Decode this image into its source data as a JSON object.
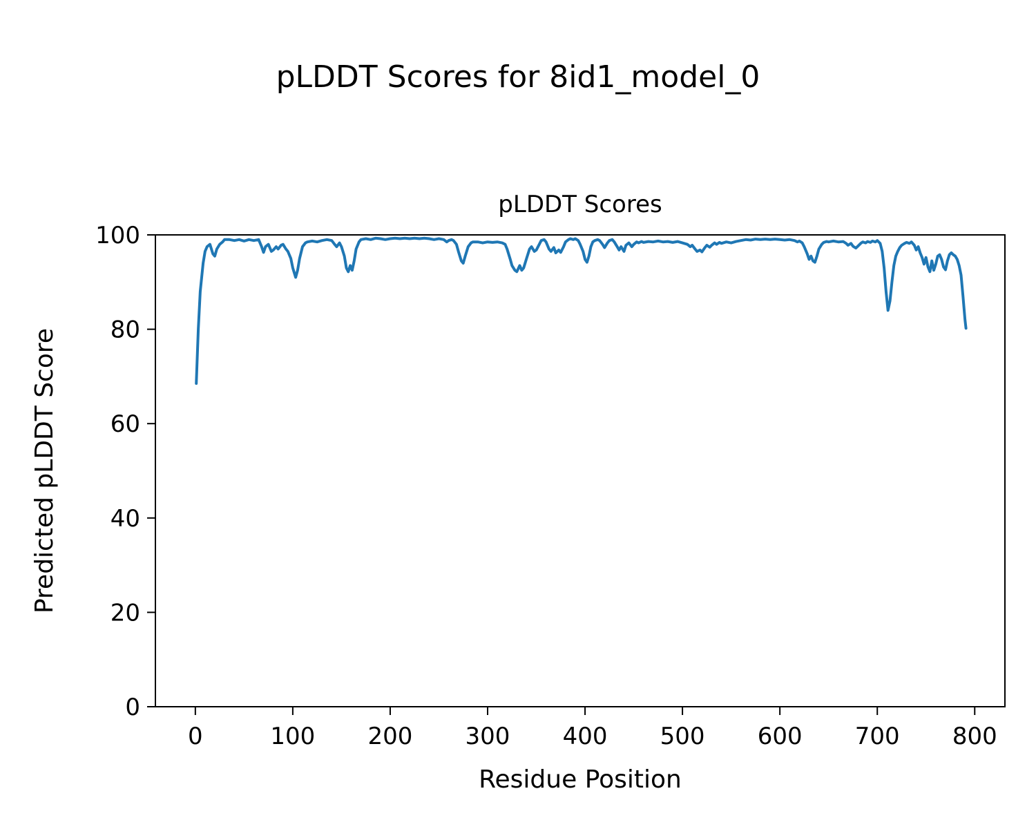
{
  "figure": {
    "suptitle": "pLDDT Scores for 8id1_model_0"
  },
  "chart_data": {
    "type": "line",
    "title": "pLDDT Scores",
    "xlabel": "Residue Position",
    "ylabel": "Predicted pLDDT Score",
    "series_name": "pLDDT",
    "xlim": [
      -41,
      831
    ],
    "ylim": [
      0,
      100
    ],
    "xticks": [
      0,
      100,
      200,
      300,
      400,
      500,
      600,
      700,
      800
    ],
    "yticks": [
      0,
      20,
      40,
      60,
      80,
      100
    ],
    "grid": false,
    "line_color": "#1f77b4",
    "line_width": 4,
    "points": [
      [
        1,
        68.5
      ],
      [
        3,
        80
      ],
      [
        5,
        88
      ],
      [
        8,
        94
      ],
      [
        10,
        96.5
      ],
      [
        12,
        97.5
      ],
      [
        15,
        98
      ],
      [
        18,
        96
      ],
      [
        20,
        95.5
      ],
      [
        22,
        97
      ],
      [
        25,
        98
      ],
      [
        28,
        98.5
      ],
      [
        30,
        99
      ],
      [
        35,
        99
      ],
      [
        40,
        98.8
      ],
      [
        45,
        99
      ],
      [
        50,
        98.7
      ],
      [
        55,
        99
      ],
      [
        60,
        98.8
      ],
      [
        65,
        99
      ],
      [
        68,
        97.5
      ],
      [
        70,
        96.3
      ],
      [
        72,
        97.5
      ],
      [
        75,
        98
      ],
      [
        78,
        96.5
      ],
      [
        80,
        96.8
      ],
      [
        83,
        97.5
      ],
      [
        85,
        97
      ],
      [
        88,
        97.8
      ],
      [
        90,
        98
      ],
      [
        93,
        97
      ],
      [
        95,
        96.5
      ],
      [
        98,
        95
      ],
      [
        100,
        93
      ],
      [
        103,
        91
      ],
      [
        105,
        92.5
      ],
      [
        107,
        95
      ],
      [
        110,
        97.5
      ],
      [
        113,
        98.3
      ],
      [
        115,
        98.5
      ],
      [
        120,
        98.7
      ],
      [
        125,
        98.5
      ],
      [
        130,
        98.8
      ],
      [
        135,
        99
      ],
      [
        140,
        98.8
      ],
      [
        143,
        98
      ],
      [
        145,
        97.5
      ],
      [
        148,
        98.3
      ],
      [
        150,
        97.5
      ],
      [
        153,
        95.5
      ],
      [
        155,
        93
      ],
      [
        157,
        92.2
      ],
      [
        159,
        93.5
      ],
      [
        161,
        92.5
      ],
      [
        163,
        94.5
      ],
      [
        165,
        97
      ],
      [
        168,
        98.5
      ],
      [
        170,
        99
      ],
      [
        175,
        99.2
      ],
      [
        180,
        99
      ],
      [
        185,
        99.3
      ],
      [
        190,
        99.2
      ],
      [
        195,
        99
      ],
      [
        200,
        99.2
      ],
      [
        205,
        99.3
      ],
      [
        210,
        99.2
      ],
      [
        215,
        99.3
      ],
      [
        220,
        99.2
      ],
      [
        225,
        99.3
      ],
      [
        230,
        99.2
      ],
      [
        235,
        99.3
      ],
      [
        240,
        99.2
      ],
      [
        245,
        99
      ],
      [
        250,
        99.2
      ],
      [
        255,
        99
      ],
      [
        258,
        98.5
      ],
      [
        260,
        98.8
      ],
      [
        263,
        99
      ],
      [
        265,
        98.8
      ],
      [
        268,
        98
      ],
      [
        270,
        96.5
      ],
      [
        273,
        94.5
      ],
      [
        275,
        94
      ],
      [
        277,
        95.5
      ],
      [
        280,
        97.5
      ],
      [
        283,
        98.3
      ],
      [
        285,
        98.5
      ],
      [
        290,
        98.5
      ],
      [
        295,
        98.3
      ],
      [
        300,
        98.5
      ],
      [
        305,
        98.4
      ],
      [
        310,
        98.5
      ],
      [
        315,
        98.3
      ],
      [
        318,
        98
      ],
      [
        320,
        97
      ],
      [
        323,
        95
      ],
      [
        325,
        93.5
      ],
      [
        328,
        92.5
      ],
      [
        330,
        92.2
      ],
      [
        333,
        93.5
      ],
      [
        335,
        92.5
      ],
      [
        337,
        93
      ],
      [
        340,
        95
      ],
      [
        343,
        97
      ],
      [
        345,
        97.5
      ],
      [
        348,
        96.5
      ],
      [
        350,
        96.8
      ],
      [
        353,
        98
      ],
      [
        355,
        98.8
      ],
      [
        358,
        99
      ],
      [
        360,
        98.5
      ],
      [
        363,
        97
      ],
      [
        365,
        96.5
      ],
      [
        368,
        97.3
      ],
      [
        370,
        96.2
      ],
      [
        373,
        96.8
      ],
      [
        375,
        96.3
      ],
      [
        378,
        97.5
      ],
      [
        380,
        98.5
      ],
      [
        383,
        99
      ],
      [
        385,
        99.2
      ],
      [
        388,
        99
      ],
      [
        390,
        99.2
      ],
      [
        393,
        98.8
      ],
      [
        395,
        98
      ],
      [
        398,
        96.5
      ],
      [
        400,
        94.8
      ],
      [
        402,
        94.2
      ],
      [
        404,
        95.5
      ],
      [
        406,
        97.5
      ],
      [
        408,
        98.5
      ],
      [
        410,
        98.8
      ],
      [
        413,
        99
      ],
      [
        415,
        98.8
      ],
      [
        418,
        98
      ],
      [
        420,
        97.3
      ],
      [
        423,
        98.3
      ],
      [
        425,
        98.8
      ],
      [
        428,
        99
      ],
      [
        430,
        98.5
      ],
      [
        433,
        97.5
      ],
      [
        435,
        96.8
      ],
      [
        437,
        97.5
      ],
      [
        440,
        96.5
      ],
      [
        442,
        97.8
      ],
      [
        445,
        98.3
      ],
      [
        448,
        97.5
      ],
      [
        450,
        98
      ],
      [
        453,
        98.5
      ],
      [
        455,
        98.3
      ],
      [
        458,
        98.6
      ],
      [
        460,
        98.4
      ],
      [
        465,
        98.6
      ],
      [
        470,
        98.5
      ],
      [
        475,
        98.7
      ],
      [
        480,
        98.5
      ],
      [
        485,
        98.6
      ],
      [
        490,
        98.4
      ],
      [
        495,
        98.6
      ],
      [
        500,
        98.3
      ],
      [
        505,
        98
      ],
      [
        508,
        97.5
      ],
      [
        510,
        97.8
      ],
      [
        513,
        97
      ],
      [
        515,
        96.5
      ],
      [
        518,
        96.8
      ],
      [
        520,
        96.4
      ],
      [
        523,
        97.3
      ],
      [
        525,
        97.8
      ],
      [
        528,
        97.4
      ],
      [
        530,
        97.8
      ],
      [
        533,
        98.3
      ],
      [
        535,
        98
      ],
      [
        538,
        98.4
      ],
      [
        540,
        98.2
      ],
      [
        545,
        98.5
      ],
      [
        550,
        98.3
      ],
      [
        555,
        98.6
      ],
      [
        560,
        98.8
      ],
      [
        565,
        99
      ],
      [
        570,
        98.9
      ],
      [
        575,
        99.1
      ],
      [
        580,
        99
      ],
      [
        585,
        99.1
      ],
      [
        590,
        99
      ],
      [
        595,
        99.1
      ],
      [
        600,
        99
      ],
      [
        605,
        98.9
      ],
      [
        610,
        99
      ],
      [
        615,
        98.8
      ],
      [
        618,
        98.5
      ],
      [
        620,
        98.7
      ],
      [
        623,
        98.3
      ],
      [
        625,
        97.5
      ],
      [
        628,
        96
      ],
      [
        630,
        94.8
      ],
      [
        632,
        95.5
      ],
      [
        634,
        94.5
      ],
      [
        636,
        94.2
      ],
      [
        638,
        95.5
      ],
      [
        640,
        97
      ],
      [
        643,
        98
      ],
      [
        645,
        98.4
      ],
      [
        648,
        98.6
      ],
      [
        650,
        98.5
      ],
      [
        655,
        98.7
      ],
      [
        660,
        98.5
      ],
      [
        665,
        98.6
      ],
      [
        668,
        98.2
      ],
      [
        670,
        97.8
      ],
      [
        673,
        98.2
      ],
      [
        675,
        97.6
      ],
      [
        678,
        97.2
      ],
      [
        680,
        97.6
      ],
      [
        683,
        98.2
      ],
      [
        685,
        98.5
      ],
      [
        688,
        98.3
      ],
      [
        690,
        98.6
      ],
      [
        693,
        98.4
      ],
      [
        695,
        98.7
      ],
      [
        698,
        98.5
      ],
      [
        700,
        98.8
      ],
      [
        703,
        98.2
      ],
      [
        705,
        96.5
      ],
      [
        707,
        93
      ],
      [
        709,
        88
      ],
      [
        711,
        84
      ],
      [
        713,
        86
      ],
      [
        715,
        90
      ],
      [
        717,
        93.5
      ],
      [
        719,
        95.5
      ],
      [
        721,
        96.5
      ],
      [
        723,
        97.3
      ],
      [
        725,
        97.8
      ],
      [
        728,
        98.2
      ],
      [
        730,
        98.4
      ],
      [
        733,
        98.2
      ],
      [
        735,
        98.5
      ],
      [
        738,
        97.8
      ],
      [
        740,
        96.8
      ],
      [
        742,
        97.5
      ],
      [
        744,
        96.2
      ],
      [
        746,
        95.2
      ],
      [
        748,
        93.8
      ],
      [
        750,
        95.2
      ],
      [
        752,
        93.2
      ],
      [
        754,
        92.2
      ],
      [
        756,
        94.5
      ],
      [
        758,
        92.5
      ],
      [
        760,
        93.8
      ],
      [
        762,
        95.5
      ],
      [
        764,
        95.8
      ],
      [
        766,
        94.8
      ],
      [
        768,
        93.2
      ],
      [
        770,
        92.6
      ],
      [
        772,
        94.5
      ],
      [
        774,
        95.8
      ],
      [
        776,
        96.2
      ],
      [
        778,
        95.8
      ],
      [
        780,
        95.5
      ],
      [
        782,
        94.8
      ],
      [
        784,
        93.5
      ],
      [
        786,
        91.5
      ],
      [
        788,
        87
      ],
      [
        790,
        82
      ],
      [
        791,
        80.2
      ]
    ]
  }
}
